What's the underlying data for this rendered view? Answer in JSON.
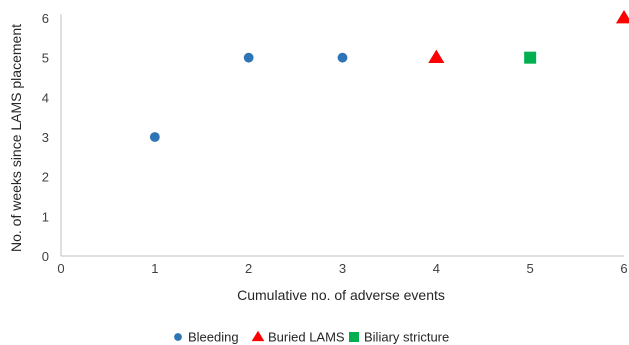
{
  "chart_data": {
    "type": "scatter",
    "xlabel": "Cumulative no. of adverse events",
    "ylabel": "No. of weeks since LAMS placement",
    "xlim": [
      0,
      6
    ],
    "ylim": [
      0,
      6
    ],
    "xticks": [
      "0",
      "1",
      "2",
      "3",
      "4",
      "5",
      "6"
    ],
    "yticks": [
      "0",
      "1",
      "2",
      "3",
      "4",
      "5",
      "6"
    ],
    "grid": false,
    "legend_position": "bottom",
    "series": [
      {
        "name": "Bleeding",
        "marker": "circle",
        "color": "#2E75B6",
        "points": [
          {
            "x": 1,
            "y": 3
          },
          {
            "x": 2,
            "y": 5
          },
          {
            "x": 3,
            "y": 5
          }
        ]
      },
      {
        "name": "Buried LAMS",
        "marker": "triangle",
        "color": "#FF0000",
        "points": [
          {
            "x": 4,
            "y": 5
          },
          {
            "x": 6,
            "y": 6
          }
        ]
      },
      {
        "name": "Biliary stricture",
        "marker": "square",
        "color": "#00B050",
        "points": [
          {
            "x": 5,
            "y": 5
          }
        ]
      }
    ]
  }
}
